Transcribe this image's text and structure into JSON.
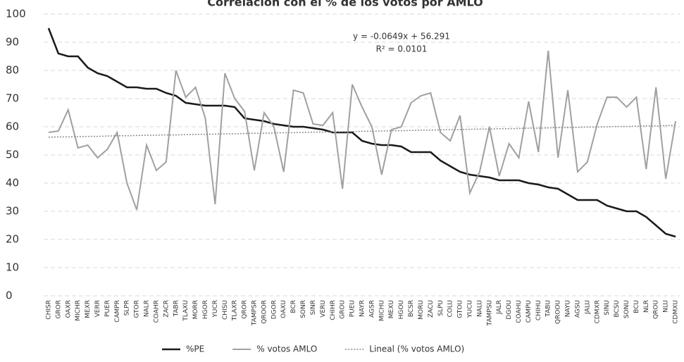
{
  "chart_data": {
    "type": "line",
    "title": "Correlación con el % de los votos por AMLO",
    "annotations": [
      "y = -0.0649x + 56.291",
      "R² = 0.0101"
    ],
    "categories": [
      "CHISR",
      "GROR",
      "OAXR",
      "MICHR",
      "MEXR",
      "VERR",
      "PUER",
      "CAMPR",
      "SLPR",
      "GTOR",
      "NALR",
      "COAHR",
      "ZACR",
      "TABR",
      "TLAXU",
      "MORR",
      "HGOR",
      "YUCR",
      "CHISU",
      "TLAXR",
      "QROR",
      "TAMPSR",
      "QROOR",
      "DGOR",
      "OAXU",
      "BCR",
      "SONR",
      "SINR",
      "VERU",
      "CHIHR",
      "GROU",
      "PUEU",
      "NAYR",
      "AGSR",
      "MICHU",
      "MEXU",
      "HGOU",
      "BCSR",
      "MORU",
      "ZACU",
      "SLPU",
      "COLU",
      "GTOU",
      "YUCU",
      "NALU",
      "TAMPSU",
      "JALR",
      "DGOU",
      "COAHU",
      "CAMPU",
      "CHIHU",
      "TABU",
      "QROOU",
      "NAYU",
      "AGSU",
      "JALU",
      "CDMXR",
      "SINU",
      "BCSU",
      "SONU",
      "BCU",
      "NLR",
      "QROU",
      "NLU",
      "CDMXU"
    ],
    "series": [
      {
        "name": "%PE",
        "color": "#1a1a1a",
        "width": 2.5,
        "dash": "solid",
        "values": [
          95,
          86,
          85,
          85,
          81,
          79,
          78,
          76,
          74,
          74,
          73.5,
          73.5,
          72,
          71,
          68.5,
          68,
          67.5,
          67.5,
          67.5,
          67,
          63,
          62.5,
          62,
          61,
          60.5,
          60,
          60,
          59.5,
          59,
          58,
          58,
          58,
          55,
          54,
          53.5,
          53.5,
          53,
          51,
          51,
          51,
          48,
          46,
          44,
          43,
          42.5,
          42,
          41,
          41,
          41,
          40,
          39.5,
          38.5,
          38,
          36,
          34,
          34,
          34,
          32,
          31,
          30,
          30,
          28,
          25,
          22,
          21
        ]
      },
      {
        "name": "% votos AMLO",
        "color": "#a0a0a0",
        "width": 2,
        "dash": "solid",
        "values": [
          58,
          58.5,
          66,
          52.5,
          53.5,
          49,
          52,
          58,
          40,
          30.5,
          53.5,
          44.5,
          47.5,
          80,
          70.5,
          74,
          63,
          32.5,
          79,
          70,
          65.5,
          44.5,
          65,
          60,
          44,
          73,
          72,
          61,
          60.5,
          65,
          38,
          75,
          67,
          60,
          43,
          59,
          60,
          68.5,
          71,
          72,
          58,
          55,
          64,
          36.5,
          44,
          60,
          42.5,
          54,
          49,
          69,
          51,
          87,
          49,
          73,
          44,
          47.5,
          61,
          70.5,
          70.5,
          67,
          70.5,
          45,
          74,
          41.5,
          62
        ]
      },
      {
        "name": "Lineal (% votos AMLO)",
        "color": "#8a8a8a",
        "width": 1.5,
        "dash": "dotted",
        "values": [
          56.3,
          56.4,
          56.4,
          56.5,
          56.6,
          56.6,
          56.7,
          56.8,
          56.8,
          56.9,
          57,
          57,
          57.1,
          57.1,
          57.2,
          57.3,
          57.3,
          57.4,
          57.5,
          57.5,
          57.6,
          57.7,
          57.7,
          57.8,
          57.9,
          57.9,
          58,
          58.1,
          58.1,
          58.2,
          58.2,
          58.3,
          58.4,
          58.4,
          58.5,
          58.6,
          58.6,
          58.7,
          58.8,
          58.8,
          58.9,
          59,
          59,
          59.1,
          59.2,
          59.2,
          59.3,
          59.3,
          59.4,
          59.5,
          59.5,
          59.6,
          59.7,
          59.7,
          59.8,
          59.9,
          59.9,
          60,
          60.1,
          60.1,
          60.2,
          60.3,
          60.3,
          60.4,
          60.5
        ]
      }
    ],
    "ylim": [
      0,
      100
    ],
    "yticks": [
      0,
      10,
      20,
      30,
      40,
      50,
      60,
      70,
      80,
      90,
      100
    ],
    "grid": true,
    "legend": "bottom"
  }
}
